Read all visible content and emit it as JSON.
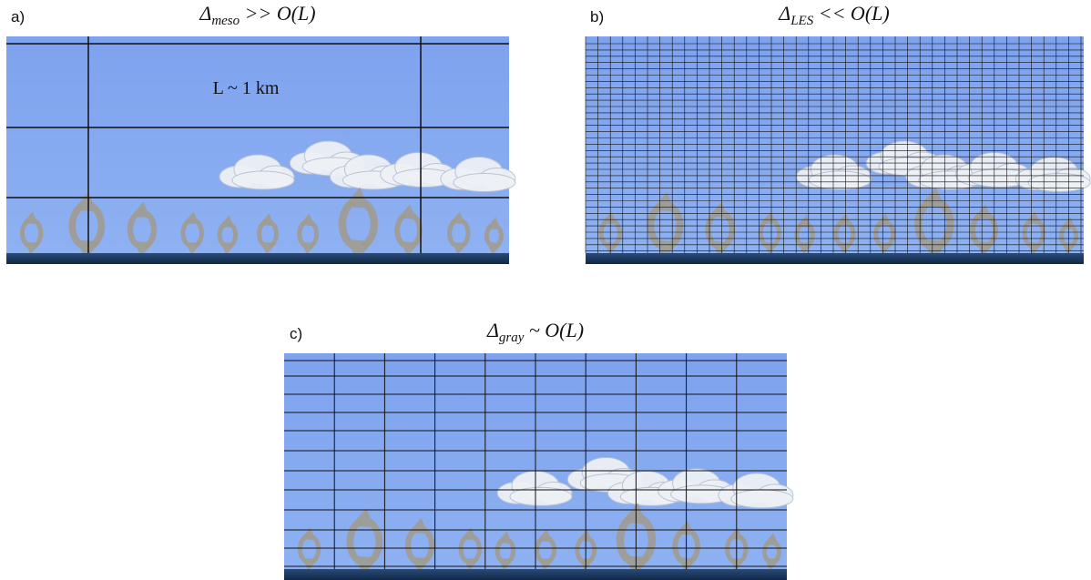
{
  "panels": [
    {
      "label": "a)",
      "title_symbol": "Δ",
      "title_sub": "meso",
      "title_rest": " >> O(L)",
      "annotation": "L ~ 1 km"
    },
    {
      "label": "b)",
      "title_symbol": "Δ",
      "title_sub": "LES",
      "title_rest": " << O(L)"
    },
    {
      "label": "c)",
      "title_symbol": "Δ",
      "title_sub": "gray",
      "title_rest": " ~ O(L)"
    }
  ]
}
